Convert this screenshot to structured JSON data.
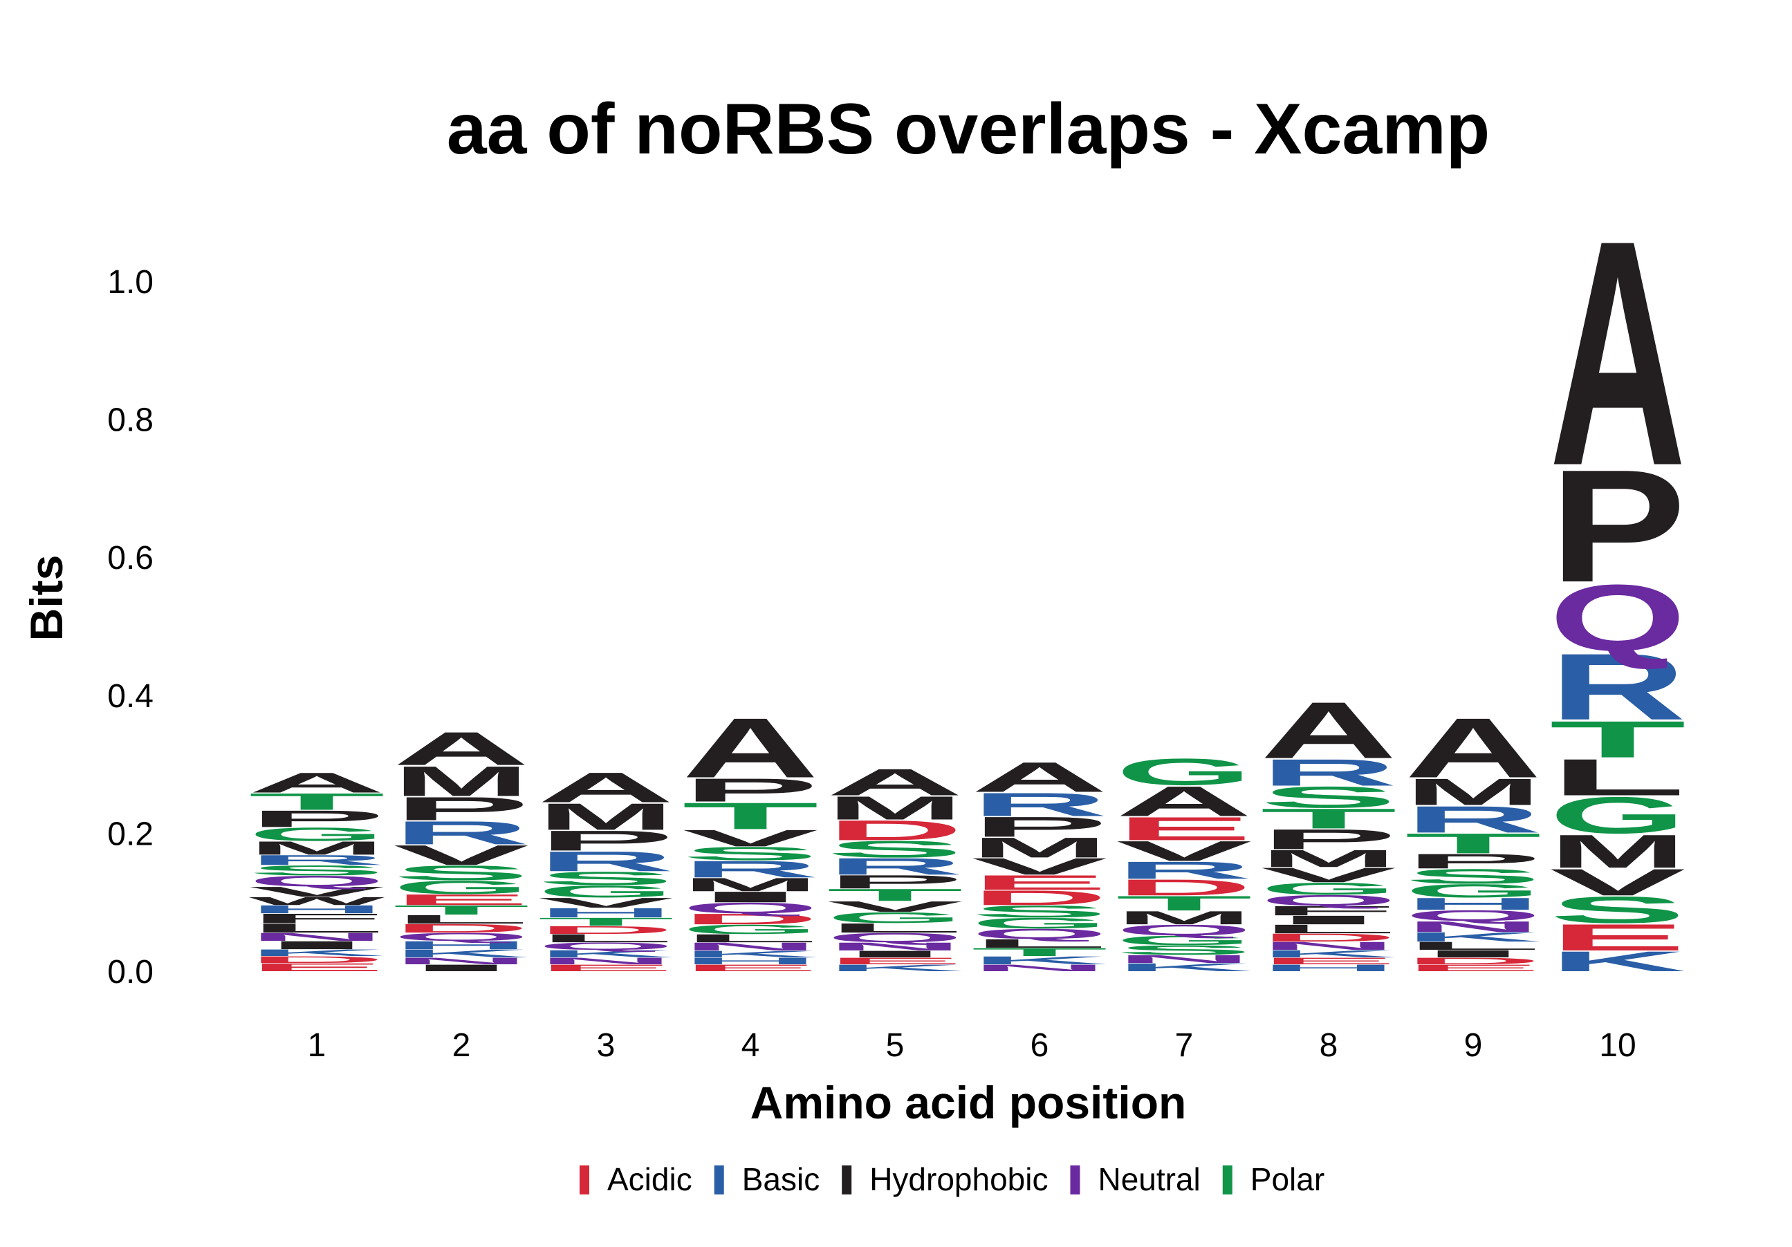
{
  "chart_data": {
    "type": "sequence-logo",
    "title": "aa of noRBS overlaps - Xcamp",
    "xlabel": "Amino acid position",
    "ylabel": "Bits",
    "ylim": [
      0,
      1.1
    ],
    "yticks": [
      "0.0",
      "0.2",
      "0.4",
      "0.6",
      "0.8",
      "1.0"
    ],
    "xticks": [
      "1",
      "2",
      "3",
      "4",
      "5",
      "6",
      "7",
      "8",
      "9",
      "10"
    ],
    "legend": {
      "placement": "bottom",
      "items": [
        {
          "label": "Acidic",
          "color": "#d62839"
        },
        {
          "label": "Basic",
          "color": "#2a5ea6"
        },
        {
          "label": "Hydrophobic",
          "color": "#231f20"
        },
        {
          "label": "Neutral",
          "color": "#6a2aa0"
        },
        {
          "label": "Polar",
          "color": "#0f9448"
        }
      ]
    },
    "groups": {
      "A": "Hydrophobic",
      "P": "Hydrophobic",
      "M": "Hydrophobic",
      "V": "Hydrophobic",
      "L": "Hydrophobic",
      "I": "Hydrophobic",
      "W": "Hydrophobic",
      "F": "Hydrophobic",
      "R": "Basic",
      "K": "Basic",
      "H": "Basic",
      "D": "Acidic",
      "E": "Acidic",
      "Q": "Neutral",
      "N": "Neutral",
      "G": "Polar",
      "S": "Polar",
      "T": "Polar",
      "C": "Polar",
      "Y": "Polar"
    },
    "positions": [
      {
        "pos": "1",
        "stack": [
          {
            "letter": "E",
            "bits": 0.012
          },
          {
            "letter": "D",
            "bits": 0.01
          },
          {
            "letter": "K",
            "bits": 0.01
          },
          {
            "letter": "I",
            "bits": 0.012
          },
          {
            "letter": "N",
            "bits": 0.012
          },
          {
            "letter": "L",
            "bits": 0.014
          },
          {
            "letter": "F",
            "bits": 0.014
          },
          {
            "letter": "H",
            "bits": 0.012
          },
          {
            "letter": "W",
            "bits": 0.012
          },
          {
            "letter": "V",
            "bits": 0.015
          },
          {
            "letter": "Q",
            "bits": 0.016
          },
          {
            "letter": "S",
            "bits": 0.015
          },
          {
            "letter": "R",
            "bits": 0.015
          },
          {
            "letter": "M",
            "bits": 0.02
          },
          {
            "letter": "G",
            "bits": 0.02
          },
          {
            "letter": "P",
            "bits": 0.025
          },
          {
            "letter": "T",
            "bits": 0.025
          },
          {
            "letter": "A",
            "bits": 0.03
          }
        ]
      },
      {
        "pos": "2",
        "stack": [
          {
            "letter": "I",
            "bits": 0.01
          },
          {
            "letter": "N",
            "bits": 0.01
          },
          {
            "letter": "K",
            "bits": 0.012
          },
          {
            "letter": "H",
            "bits": 0.012
          },
          {
            "letter": "Q",
            "bits": 0.012
          },
          {
            "letter": "D",
            "bits": 0.013
          },
          {
            "letter": "L",
            "bits": 0.013
          },
          {
            "letter": "T",
            "bits": 0.014
          },
          {
            "letter": "E",
            "bits": 0.016
          },
          {
            "letter": "G",
            "bits": 0.02
          },
          {
            "letter": "S",
            "bits": 0.022
          },
          {
            "letter": "V",
            "bits": 0.03
          },
          {
            "letter": "R",
            "bits": 0.035
          },
          {
            "letter": "P",
            "bits": 0.035
          },
          {
            "letter": "M",
            "bits": 0.045
          },
          {
            "letter": "A",
            "bits": 0.05
          }
        ]
      },
      {
        "pos": "3",
        "stack": [
          {
            "letter": "E",
            "bits": 0.01
          },
          {
            "letter": "N",
            "bits": 0.01
          },
          {
            "letter": "K",
            "bits": 0.011
          },
          {
            "letter": "Q",
            "bits": 0.011
          },
          {
            "letter": "L",
            "bits": 0.012
          },
          {
            "letter": "D",
            "bits": 0.012
          },
          {
            "letter": "T",
            "bits": 0.012
          },
          {
            "letter": "H",
            "bits": 0.014
          },
          {
            "letter": "V",
            "bits": 0.015
          },
          {
            "letter": "G",
            "bits": 0.018
          },
          {
            "letter": "S",
            "bits": 0.02
          },
          {
            "letter": "R",
            "bits": 0.03
          },
          {
            "letter": "P",
            "bits": 0.03
          },
          {
            "letter": "M",
            "bits": 0.04
          },
          {
            "letter": "A",
            "bits": 0.045
          }
        ]
      },
      {
        "pos": "4",
        "stack": [
          {
            "letter": "E",
            "bits": 0.01
          },
          {
            "letter": "H",
            "bits": 0.01
          },
          {
            "letter": "K",
            "bits": 0.01
          },
          {
            "letter": "N",
            "bits": 0.012
          },
          {
            "letter": "L",
            "bits": 0.012
          },
          {
            "letter": "G",
            "bits": 0.014
          },
          {
            "letter": "D",
            "bits": 0.016
          },
          {
            "letter": "Q",
            "bits": 0.016
          },
          {
            "letter": "I",
            "bits": 0.016
          },
          {
            "letter": "M",
            "bits": 0.02
          },
          {
            "letter": "R",
            "bits": 0.025
          },
          {
            "letter": "S",
            "bits": 0.02
          },
          {
            "letter": "V",
            "bits": 0.025
          },
          {
            "letter": "T",
            "bits": 0.04
          },
          {
            "letter": "P",
            "bits": 0.035
          },
          {
            "letter": "A",
            "bits": 0.09
          }
        ]
      },
      {
        "pos": "5",
        "stack": [
          {
            "letter": "K",
            "bits": 0.01
          },
          {
            "letter": "E",
            "bits": 0.01
          },
          {
            "letter": "I",
            "bits": 0.01
          },
          {
            "letter": "N",
            "bits": 0.012
          },
          {
            "letter": "Q",
            "bits": 0.014
          },
          {
            "letter": "L",
            "bits": 0.014
          },
          {
            "letter": "G",
            "bits": 0.016
          },
          {
            "letter": "V",
            "bits": 0.016
          },
          {
            "letter": "T",
            "bits": 0.018
          },
          {
            "letter": "P",
            "bits": 0.02
          },
          {
            "letter": "R",
            "bits": 0.025
          },
          {
            "letter": "S",
            "bits": 0.025
          },
          {
            "letter": "D",
            "bits": 0.03
          },
          {
            "letter": "M",
            "bits": 0.035
          },
          {
            "letter": "A",
            "bits": 0.04
          }
        ]
      },
      {
        "pos": "6",
        "stack": [
          {
            "letter": "N",
            "bits": 0.01
          },
          {
            "letter": "K",
            "bits": 0.012
          },
          {
            "letter": "T",
            "bits": 0.012
          },
          {
            "letter": "L",
            "bits": 0.013
          },
          {
            "letter": "Q",
            "bits": 0.015
          },
          {
            "letter": "G",
            "bits": 0.016
          },
          {
            "letter": "S",
            "bits": 0.018
          },
          {
            "letter": "D",
            "bits": 0.022
          },
          {
            "letter": "E",
            "bits": 0.022
          },
          {
            "letter": "V",
            "bits": 0.025
          },
          {
            "letter": "M",
            "bits": 0.03
          },
          {
            "letter": "P",
            "bits": 0.03
          },
          {
            "letter": "R",
            "bits": 0.035
          },
          {
            "letter": "A",
            "bits": 0.045
          }
        ]
      },
      {
        "pos": "7",
        "stack": [
          {
            "letter": "K",
            "bits": 0.012
          },
          {
            "letter": "N",
            "bits": 0.012
          },
          {
            "letter": "S",
            "bits": 0.014
          },
          {
            "letter": "G",
            "bits": 0.014
          },
          {
            "letter": "Q",
            "bits": 0.016
          },
          {
            "letter": "M",
            "bits": 0.02
          },
          {
            "letter": "T",
            "bits": 0.022
          },
          {
            "letter": "D",
            "bits": 0.024
          },
          {
            "letter": "R",
            "bits": 0.026
          },
          {
            "letter": "V",
            "bits": 0.03
          },
          {
            "letter": "E",
            "bits": 0.035
          },
          {
            "letter": "A",
            "bits": 0.045
          },
          {
            "letter": "G",
            "bits": 0.04
          }
        ]
      },
      {
        "pos": "8",
        "stack": [
          {
            "letter": "H",
            "bits": 0.01
          },
          {
            "letter": "E",
            "bits": 0.01
          },
          {
            "letter": "K",
            "bits": 0.011
          },
          {
            "letter": "N",
            "bits": 0.012
          },
          {
            "letter": "D",
            "bits": 0.012
          },
          {
            "letter": "L",
            "bits": 0.013
          },
          {
            "letter": "I",
            "bits": 0.013
          },
          {
            "letter": "F",
            "bits": 0.014
          },
          {
            "letter": "Q",
            "bits": 0.016
          },
          {
            "letter": "G",
            "bits": 0.018
          },
          {
            "letter": "V",
            "bits": 0.022
          },
          {
            "letter": "M",
            "bits": 0.026
          },
          {
            "letter": "P",
            "bits": 0.03
          },
          {
            "letter": "T",
            "bits": 0.03
          },
          {
            "letter": "S",
            "bits": 0.032
          },
          {
            "letter": "R",
            "bits": 0.04
          },
          {
            "letter": "A",
            "bits": 0.085
          }
        ]
      },
      {
        "pos": "9",
        "stack": [
          {
            "letter": "E",
            "bits": 0.01
          },
          {
            "letter": "D",
            "bits": 0.01
          },
          {
            "letter": "I",
            "bits": 0.011
          },
          {
            "letter": "L",
            "bits": 0.012
          },
          {
            "letter": "K",
            "bits": 0.014
          },
          {
            "letter": "N",
            "bits": 0.016
          },
          {
            "letter": "Q",
            "bits": 0.016
          },
          {
            "letter": "H",
            "bits": 0.018
          },
          {
            "letter": "G",
            "bits": 0.02
          },
          {
            "letter": "S",
            "bits": 0.022
          },
          {
            "letter": "P",
            "bits": 0.022
          },
          {
            "letter": "T",
            "bits": 0.03
          },
          {
            "letter": "R",
            "bits": 0.04
          },
          {
            "letter": "M",
            "bits": 0.04
          },
          {
            "letter": "A",
            "bits": 0.09
          }
        ]
      },
      {
        "pos": "10",
        "stack": [
          {
            "letter": "K",
            "bits": 0.03
          },
          {
            "letter": "E",
            "bits": 0.04
          },
          {
            "letter": "S",
            "bits": 0.04
          },
          {
            "letter": "V",
            "bits": 0.04
          },
          {
            "letter": "M",
            "bits": 0.05
          },
          {
            "letter": "G",
            "bits": 0.055
          },
          {
            "letter": "L",
            "bits": 0.055
          },
          {
            "letter": "T",
            "bits": 0.055
          },
          {
            "letter": "R",
            "bits": 0.1
          },
          {
            "letter": "Q",
            "bits": 0.1
          },
          {
            "letter": "P",
            "bits": 0.17
          },
          {
            "letter": "A",
            "bits": 0.34
          }
        ]
      }
    ]
  }
}
